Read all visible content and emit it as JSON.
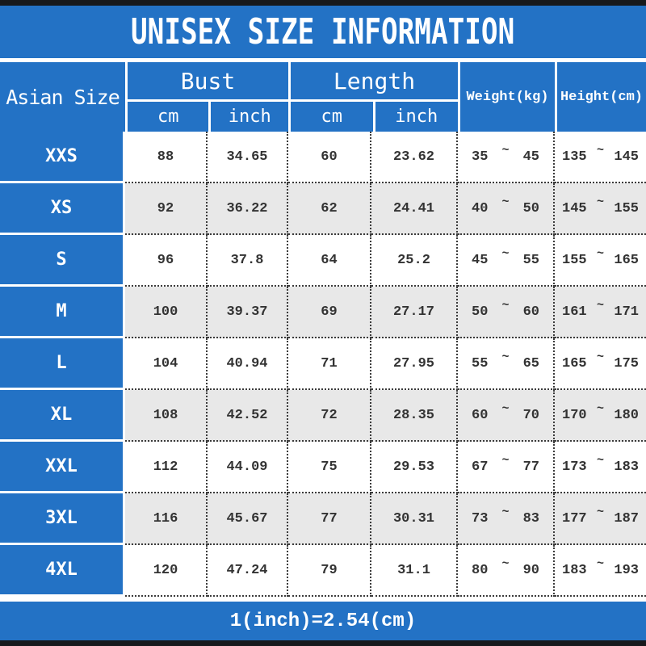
{
  "title": "UNISEX SIZE INFORMATION",
  "header": {
    "asian_size": "Asian Size",
    "bust": "Bust",
    "length": "Length",
    "cm": "cm",
    "inch": "inch",
    "weight": "Weight(kg)",
    "height": "Height(cm)"
  },
  "tilde": "~",
  "rows": [
    {
      "size": "XXS",
      "bust_cm": "88",
      "bust_inch": "34.65",
      "length_cm": "60",
      "length_inch": "23.62",
      "weight_min": "35",
      "weight_max": "45",
      "height_min": "135",
      "height_max": "145"
    },
    {
      "size": "XS",
      "bust_cm": "92",
      "bust_inch": "36.22",
      "length_cm": "62",
      "length_inch": "24.41",
      "weight_min": "40",
      "weight_max": "50",
      "height_min": "145",
      "height_max": "155"
    },
    {
      "size": "S",
      "bust_cm": "96",
      "bust_inch": "37.8",
      "length_cm": "64",
      "length_inch": "25.2",
      "weight_min": "45",
      "weight_max": "55",
      "height_min": "155",
      "height_max": "165"
    },
    {
      "size": "M",
      "bust_cm": "100",
      "bust_inch": "39.37",
      "length_cm": "69",
      "length_inch": "27.17",
      "weight_min": "50",
      "weight_max": "60",
      "height_min": "161",
      "height_max": "171"
    },
    {
      "size": "L",
      "bust_cm": "104",
      "bust_inch": "40.94",
      "length_cm": "71",
      "length_inch": "27.95",
      "weight_min": "55",
      "weight_max": "65",
      "height_min": "165",
      "height_max": "175"
    },
    {
      "size": "XL",
      "bust_cm": "108",
      "bust_inch": "42.52",
      "length_cm": "72",
      "length_inch": "28.35",
      "weight_min": "60",
      "weight_max": "70",
      "height_min": "170",
      "height_max": "180"
    },
    {
      "size": "XXL",
      "bust_cm": "112",
      "bust_inch": "44.09",
      "length_cm": "75",
      "length_inch": "29.53",
      "weight_min": "67",
      "weight_max": "77",
      "height_min": "173",
      "height_max": "183"
    },
    {
      "size": "3XL",
      "bust_cm": "116",
      "bust_inch": "45.67",
      "length_cm": "77",
      "length_inch": "30.31",
      "weight_min": "73",
      "weight_max": "83",
      "height_min": "177",
      "height_max": "187"
    },
    {
      "size": "4XL",
      "bust_cm": "120",
      "bust_inch": "47.24",
      "length_cm": "79",
      "length_inch": "31.1",
      "weight_min": "80",
      "weight_max": "90",
      "height_min": "183",
      "height_max": "193"
    }
  ],
  "footer": {
    "note": "1(inch)=2.54(cm)"
  },
  "colors": {
    "blue": "#2372c5",
    "alt_row_gray": "#e8e8e8",
    "frame_bar": "#17191c",
    "body_text": "#333333",
    "header_text": "#ffffff"
  },
  "chart_data": {
    "type": "table",
    "title": "UNISEX SIZE INFORMATION",
    "columns": [
      "Asian Size",
      "Bust cm",
      "Bust inch",
      "Length cm",
      "Length inch",
      "Weight(kg)",
      "Height(cm)"
    ],
    "rows": [
      [
        "XXS",
        88,
        34.65,
        60,
        23.62,
        "35~45",
        "135~145"
      ],
      [
        "XS",
        92,
        36.22,
        62,
        24.41,
        "40~50",
        "145~155"
      ],
      [
        "S",
        96,
        37.8,
        64,
        25.2,
        "45~55",
        "155~165"
      ],
      [
        "M",
        100,
        39.37,
        69,
        27.17,
        "50~60",
        "161~171"
      ],
      [
        "L",
        104,
        40.94,
        71,
        27.95,
        "55~65",
        "165~175"
      ],
      [
        "XL",
        108,
        42.52,
        72,
        28.35,
        "60~70",
        "170~180"
      ],
      [
        "XXL",
        112,
        44.09,
        75,
        29.53,
        "67~77",
        "173~183"
      ],
      [
        "3XL",
        116,
        45.67,
        77,
        30.31,
        "73~83",
        "177~187"
      ],
      [
        "4XL",
        120,
        47.24,
        79,
        31.1,
        "80~90",
        "183~193"
      ]
    ],
    "footnote": "1(inch)=2.54(cm)"
  }
}
